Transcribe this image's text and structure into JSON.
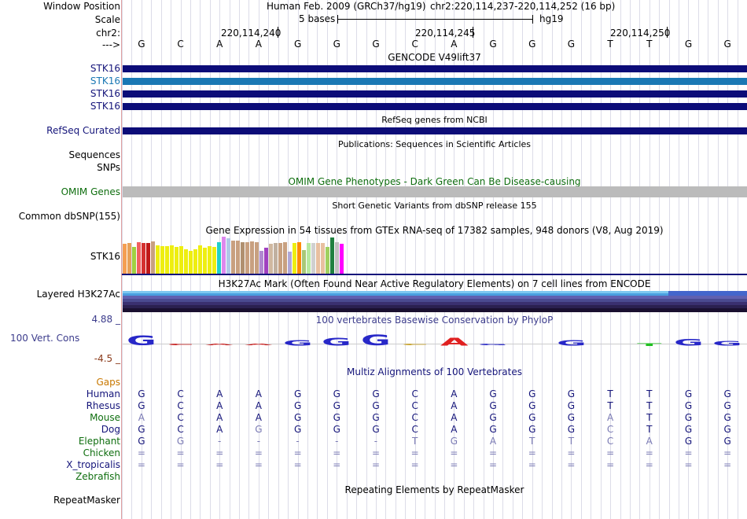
{
  "header": {
    "window_position_label": "Window Position",
    "assembly_text": "Human Feb. 2009 (GRCh37/hg19)",
    "position_text": "chr2:220,114,237-220,114,252 (16 bp)",
    "scale_label": "Scale",
    "scale_text": "5 bases",
    "scale_db": "hg19",
    "chrom_label": "chr2:",
    "strand_label": "--->",
    "tick_labels": [
      "220,114,240",
      "220,114,245",
      "220,114,250"
    ]
  },
  "sequence": [
    "G",
    "C",
    "A",
    "A",
    "G",
    "G",
    "G",
    "C",
    "A",
    "G",
    "G",
    "G",
    "T",
    "T",
    "G",
    "G"
  ],
  "tracks": {
    "gencode": {
      "title": "GENCODE V49lift37",
      "genes": [
        "STK16",
        "STK16",
        "STK16",
        "STK16"
      ],
      "colors": [
        "#0c0c78",
        "#1a78b4",
        "#0c0c78",
        "#0c0c78"
      ]
    },
    "refseq": {
      "title": "RefSeq genes from NCBI",
      "label": "RefSeq Curated",
      "color": "#0c0c78"
    },
    "publications": {
      "title": "Publications: Sequences in Scientific Articles",
      "label": "Sequences"
    },
    "snps_label": "SNPs",
    "omim": {
      "title": "OMIM Gene Phenotypes - Dark Green Can Be Disease-causing",
      "label": "OMIM Genes",
      "color": "#bbbbbb"
    },
    "dbsnp": {
      "title": "Short Genetic Variants from dbSNP release 155",
      "label": "Common dbSNP(155)"
    },
    "gtex": {
      "title": "Gene Expression in 54 tissues from GTEx RNA-seq of 17382 samples, 948 donors (V8, Aug 2019)",
      "label": "STK16",
      "bars": [
        {
          "color": "#f59e52",
          "value": 0.8
        },
        {
          "color": "#e8a058",
          "value": 0.84
        },
        {
          "color": "#a0d040",
          "value": 0.72
        },
        {
          "color": "#f06060",
          "value": 0.86
        },
        {
          "color": "#d43030",
          "value": 0.84
        },
        {
          "color": "#c01818",
          "value": 0.82
        },
        {
          "color": "#c8a080",
          "value": 0.88
        },
        {
          "color": "#eeee10",
          "value": 0.76
        },
        {
          "color": "#eeee10",
          "value": 0.74
        },
        {
          "color": "#eeee10",
          "value": 0.74
        },
        {
          "color": "#eeee10",
          "value": 0.76
        },
        {
          "color": "#eeee10",
          "value": 0.72
        },
        {
          "color": "#eeee10",
          "value": 0.74
        },
        {
          "color": "#eeee10",
          "value": 0.66
        },
        {
          "color": "#eeee10",
          "value": 0.62
        },
        {
          "color": "#eeee10",
          "value": 0.66
        },
        {
          "color": "#eeee10",
          "value": 0.76
        },
        {
          "color": "#eeee10",
          "value": 0.7
        },
        {
          "color": "#eeee10",
          "value": 0.74
        },
        {
          "color": "#eeee10",
          "value": 0.72
        },
        {
          "color": "#20d0c8",
          "value": 0.86
        },
        {
          "color": "#dd88ee",
          "value": 1.0
        },
        {
          "color": "#b0c8e8",
          "value": 0.96
        },
        {
          "color": "#c8a080",
          "value": 0.9
        },
        {
          "color": "#c8a080",
          "value": 0.9
        },
        {
          "color": "#b09070",
          "value": 0.86
        },
        {
          "color": "#c8a080",
          "value": 0.86
        },
        {
          "color": "#c8a080",
          "value": 0.88
        },
        {
          "color": "#c8a080",
          "value": 0.86
        },
        {
          "color": "#b088d0",
          "value": 0.62
        },
        {
          "color": "#a040c0",
          "value": 0.7
        },
        {
          "color": "#d0b8a0",
          "value": 0.8
        },
        {
          "color": "#c0b0a0",
          "value": 0.84
        },
        {
          "color": "#c8a080",
          "value": 0.82
        },
        {
          "color": "#c8a080",
          "value": 0.86
        },
        {
          "color": "#b0a8d8",
          "value": 0.6
        },
        {
          "color": "#eeee10",
          "value": 0.84
        },
        {
          "color": "#ff8c00",
          "value": 0.86
        },
        {
          "color": "#a8c878",
          "value": 0.64
        },
        {
          "color": "#b8e8a0",
          "value": 0.84
        },
        {
          "color": "#d0d0d0",
          "value": 0.84
        },
        {
          "color": "#e8c0a0",
          "value": 0.82
        },
        {
          "color": "#e8c0a0",
          "value": 0.84
        },
        {
          "color": "#a0d060",
          "value": 0.72
        },
        {
          "color": "#208040",
          "value": 0.98
        },
        {
          "color": "#c0c0c0",
          "value": 0.86
        },
        {
          "color": "#ff00ff",
          "value": 0.8
        }
      ]
    },
    "h3k27ac": {
      "title": "H3K27Ac Mark (Often Found Near Active Regulatory Elements) on 7 cell lines from ENCODE",
      "label": "Layered H3K27Ac"
    },
    "phylop": {
      "title": "100 vertebrates Basewise Conservation by PhyloP",
      "label": "100 Vert. Cons",
      "y_max": "4.88 _",
      "y_min": "-4.5 _",
      "letters": [
        {
          "base": "G",
          "color": "#2828c8",
          "score": 0.7,
          "sign": 1
        },
        {
          "base": "C",
          "color": "#c81818",
          "score": 0.08,
          "sign": -1
        },
        {
          "base": "A",
          "color": "#c81818",
          "score": 0.1,
          "sign": -1
        },
        {
          "base": "A",
          "color": "#c81818",
          "score": 0.08,
          "sign": -1
        },
        {
          "base": "G",
          "color": "#2828c8",
          "score": 0.4,
          "sign": 1
        },
        {
          "base": "G",
          "color": "#2828c8",
          "score": 0.55,
          "sign": 1
        },
        {
          "base": "G",
          "color": "#2828c8",
          "score": 0.75,
          "sign": 1
        },
        {
          "base": "C",
          "color": "#c8a020",
          "score": 0.1,
          "sign": -1
        },
        {
          "base": "A",
          "color": "#e02020",
          "score": 0.55,
          "sign": 1
        },
        {
          "base": "G",
          "color": "#2828c8",
          "score": 0.06,
          "sign": -1
        },
        {
          "base": "G",
          "color": "#2828c8",
          "score": 0.0,
          "sign": 1
        },
        {
          "base": "G",
          "color": "#2828c8",
          "score": 0.4,
          "sign": 1
        },
        {
          "base": "T",
          "color": "#2828c8",
          "score": 0.0,
          "sign": 1
        },
        {
          "base": "T",
          "color": "#20c020",
          "score": 0.2,
          "sign": 1
        },
        {
          "base": "G",
          "color": "#2828c8",
          "score": 0.45,
          "sign": 1
        },
        {
          "base": "G",
          "color": "#2828c8",
          "score": 0.3,
          "sign": 1
        }
      ]
    },
    "multiz": {
      "title": "Multiz Alignments of 100 Vertebrates",
      "gaps_label": "Gaps",
      "species": [
        {
          "name": "Human",
          "color": "#14147a",
          "bases": [
            "G",
            "C",
            "A",
            "A",
            "G",
            "G",
            "G",
            "C",
            "A",
            "G",
            "G",
            "G",
            "T",
            "T",
            "G",
            "G"
          ]
        },
        {
          "name": "Rhesus",
          "color": "#14147a",
          "bases": [
            "G",
            "C",
            "A",
            "A",
            "G",
            "G",
            "G",
            "C",
            "A",
            "G",
            "G",
            "G",
            "T",
            "T",
            "G",
            "G"
          ]
        },
        {
          "name": "Mouse",
          "color": "#0f6e0f",
          "bases": [
            "A",
            "C",
            "A",
            "A",
            "G",
            "G",
            "G",
            "C",
            "A",
            "G",
            "G",
            "G",
            "A",
            "T",
            "G",
            "G"
          ]
        },
        {
          "name": "Dog",
          "color": "#14147a",
          "bases": [
            "G",
            "C",
            "A",
            "G",
            "G",
            "G",
            "G",
            "C",
            "A",
            "G",
            "G",
            "G",
            "C",
            "T",
            "G",
            "G"
          ]
        },
        {
          "name": "Elephant",
          "color": "#0f6e0f",
          "bases": [
            "G",
            "G",
            "-",
            "-",
            "-",
            "-",
            "-",
            "T",
            "G",
            "A",
            "T",
            "T",
            "C",
            "A",
            "G",
            "G"
          ]
        },
        {
          "name": "Chicken",
          "color": "#0f6e0f",
          "bases": [
            "=",
            "=",
            "=",
            "=",
            "=",
            "=",
            "=",
            "=",
            "=",
            "=",
            "=",
            "=",
            "=",
            "=",
            "=",
            "="
          ]
        },
        {
          "name": "X_tropicalis",
          "color": "#14147a",
          "bases": [
            "=",
            "=",
            "=",
            "=",
            "=",
            "=",
            "=",
            "=",
            "=",
            "=",
            "=",
            "=",
            "=",
            "=",
            "=",
            "="
          ]
        },
        {
          "name": "Zebrafish",
          "color": "#0f6e0f",
          "bases": [
            "",
            "",
            "",
            "",
            "",
            "",
            "",
            "",
            "",
            "",
            "",
            "",
            "",
            "",
            "",
            ""
          ]
        }
      ]
    },
    "repeatmasker": {
      "title": "Repeating Elements by RepeatMasker",
      "label": "RepeatMasker"
    }
  }
}
